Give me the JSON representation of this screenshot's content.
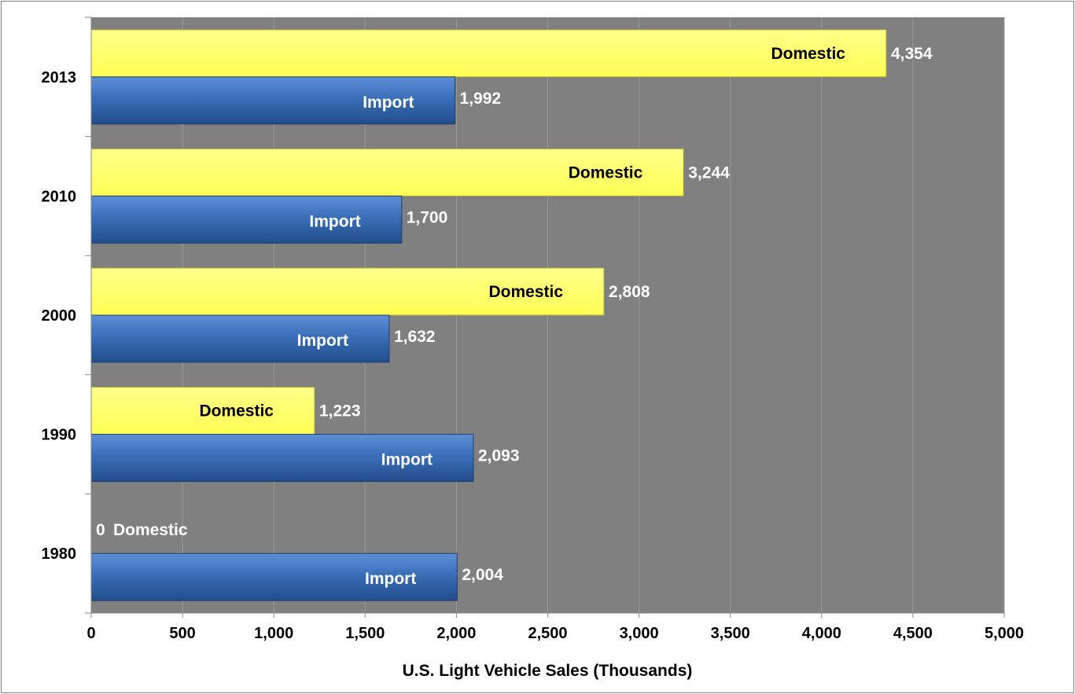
{
  "chart_data": {
    "type": "bar",
    "orientation": "horizontal",
    "categories": [
      "2013",
      "2010",
      "2000",
      "1990",
      "1980"
    ],
    "series": [
      {
        "name": "Domestic",
        "values": [
          4354,
          3244,
          2808,
          1223,
          0
        ],
        "labels": [
          "4,354",
          "3,244",
          "2,808",
          "1,223",
          "0"
        ],
        "color": "#ffff66"
      },
      {
        "name": "Import",
        "values": [
          1992,
          1700,
          1632,
          2093,
          2004
        ],
        "labels": [
          "1,992",
          "1,700",
          "1,632",
          "2,093",
          "2,004"
        ],
        "color": "#3a6fb8"
      }
    ],
    "xlabel": "U.S. Light Vehicle Sales (Thousands)",
    "ylabel": "",
    "xlim": [
      0,
      5000
    ],
    "xticks": [
      0,
      500,
      1000,
      1500,
      2000,
      2500,
      3000,
      3500,
      4000,
      4500,
      5000
    ],
    "xtick_labels": [
      "0",
      "500",
      "1,000",
      "1,500",
      "2,000",
      "2,500",
      "3,000",
      "3,500",
      "4,000",
      "4,500",
      "5,000"
    ],
    "grid": true,
    "plot_background": "#808080",
    "legend": "none"
  }
}
